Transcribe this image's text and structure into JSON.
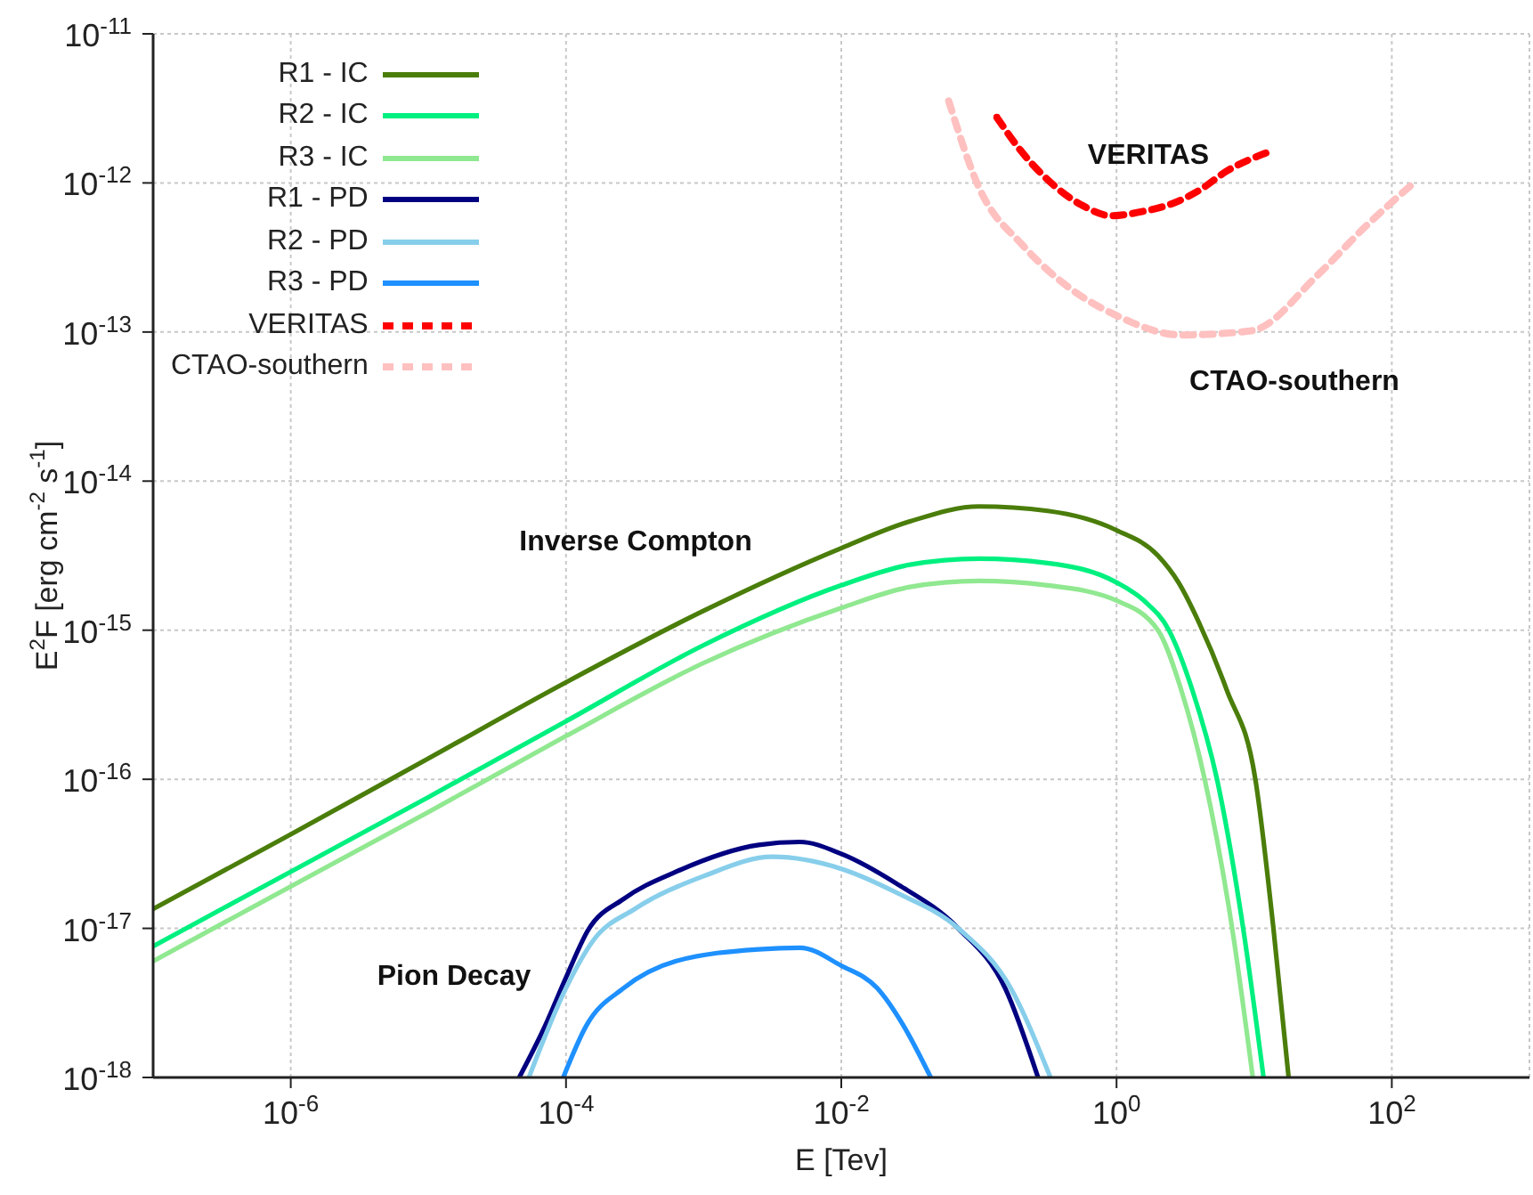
{
  "chart_data": {
    "type": "line",
    "xlabel": "E [Tev]",
    "ylabel": "E$^{2}$F [erg cm$^{-2}$ s$^{-1}$]",
    "log": "xy",
    "grid": true,
    "legend": "top left",
    "marker": "none",
    "line_style": "solid",
    "xlim": [
      1e-07,
      1000
    ],
    "ylim": [
      1e-18,
      1e-11
    ],
    "xticks": [
      {
        "value": 1e-06,
        "label": "10$^{-6}$"
      },
      {
        "value": 0.0001,
        "label": "10$^{-4}$"
      },
      {
        "value": 0.01,
        "label": "10$^{-2}$"
      },
      {
        "value": 1,
        "label": "10$^{0}$"
      },
      {
        "value": 100,
        "label": "10$^{2}$"
      }
    ],
    "yticks": [
      {
        "value": 1e-18,
        "label": "10$^{-18}$"
      },
      {
        "value": 1e-17,
        "label": "10$^{-17}$"
      },
      {
        "value": 1e-16,
        "label": "10$^{-16}$"
      },
      {
        "value": 1e-15,
        "label": "10$^{-15}$"
      },
      {
        "value": 1e-14,
        "label": "10$^{-14}$"
      },
      {
        "value": 1e-13,
        "label": "10$^{-13}$"
      },
      {
        "value": 1e-12,
        "label": "10$^{-12}$"
      },
      {
        "value": 1e-11,
        "label": "10$^{-11}$"
      }
    ],
    "series": [
      {
        "name": "R1 - IC",
        "color": "#4a7d0a",
        "x": [
          1e-07,
          1e-06,
          1e-05,
          0.0001,
          0.001,
          0.01,
          0.0316,
          0.1,
          0.316,
          1,
          2.0,
          2.82,
          3.98,
          6.31,
          10.2,
          13.8,
          17.8
        ],
        "values": [
          1.35e-17,
          4.27e-17,
          1.38e-16,
          4.47e-16,
          1.35e-15,
          3.55e-15,
          5.37e-15,
          6.76e-15,
          6.31e-15,
          4.68e-15,
          3.16e-15,
          2.09e-15,
          1.12e-15,
          3.98e-16,
          1e-16,
          1e-17,
          1e-18
        ]
      },
      {
        "name": "R2 - IC",
        "color": "#00f080",
        "x": [
          1e-07,
          1e-06,
          1e-05,
          0.0001,
          0.001,
          0.01,
          0.0316,
          0.1,
          0.316,
          1,
          1.58,
          2.4,
          3.55,
          5.37,
          8.32,
          11.7
        ],
        "values": [
          7.59e-18,
          2.4e-17,
          7.59e-17,
          2.45e-16,
          7.94e-16,
          2e-15,
          2.75e-15,
          3.02e-15,
          2.82e-15,
          2.09e-15,
          1.58e-15,
          1e-15,
          3.98e-16,
          1e-16,
          1e-17,
          1e-18
        ]
      },
      {
        "name": "R3 - IC",
        "color": "#90e890",
        "x": [
          1e-07,
          1e-06,
          1e-05,
          0.0001,
          0.001,
          0.01,
          0.0316,
          0.1,
          0.316,
          1,
          2.0,
          2.95,
          4.37,
          6.92,
          9.77
        ],
        "values": [
          6.03e-18,
          1.91e-17,
          6.03e-17,
          1.95e-16,
          6.03e-16,
          1.41e-15,
          1.95e-15,
          2.14e-15,
          2e-15,
          1.58e-15,
          1e-15,
          3.98e-16,
          1e-16,
          1e-17,
          1e-18
        ]
      },
      {
        "name": "R1 - PD",
        "color": "#000080",
        "x": [
          4.57e-05,
          7.08e-05,
          0.0001,
          0.000145,
          0.000263,
          0.000631,
          0.00251,
          0.00501,
          0.01,
          0.0251,
          0.0708,
          0.155,
          0.269
        ],
        "values": [
          1e-18,
          2.24e-18,
          4.68e-18,
          9.77e-18,
          1.58e-17,
          2.4e-17,
          3.63e-17,
          3.8e-17,
          3.16e-17,
          2e-17,
          1e-17,
          3.98e-18,
          1e-18
        ]
      },
      {
        "name": "R2 - PD",
        "color": "#87ceeb",
        "x": [
          5.37e-05,
          0.0001,
          0.000158,
          0.000316,
          0.001,
          0.00316,
          0.01,
          0.0251,
          0.0708,
          0.17,
          0.331
        ],
        "values": [
          1e-18,
          3.98e-18,
          8.32e-18,
          1.35e-17,
          2.24e-17,
          3.02e-17,
          2.51e-17,
          1.74e-17,
          1e-17,
          3.98e-18,
          1e-18
        ]
      },
      {
        "name": "R3 - PD",
        "color": "#1e90ff",
        "x": [
          9.55e-05,
          0.000141,
          0.000263,
          0.000631,
          0.00251,
          0.00501,
          0.01,
          0.0182,
          0.0282,
          0.0447
        ],
        "values": [
          1e-18,
          2.24e-18,
          3.98e-18,
          6.03e-18,
          7.24e-18,
          7.41e-18,
          5.62e-18,
          3.98e-18,
          2.24e-18,
          1e-18
        ]
      },
      {
        "name": "VERITAS",
        "color": "#ff0000",
        "line_style": "dashed",
        "x": [
          0.135,
          0.2,
          0.316,
          0.562,
          0.912,
          1.58,
          2.51,
          3.98,
          6.31,
          12.9
        ],
        "values": [
          2.75e-12,
          1.66e-12,
          1.05e-12,
          7.08e-13,
          6.03e-13,
          6.46e-13,
          7.24e-13,
          8.91e-13,
          1.2e-12,
          1.62e-12
        ]
      },
      {
        "name": "CTAO-southern",
        "color": "#ffc0c0",
        "line_style": "dashed",
        "x": [
          0.0603,
          0.1,
          0.209,
          0.447,
          1,
          2.95,
          9.55,
          28.8,
          63.1,
          148
        ],
        "values": [
          3.55e-12,
          9.33e-13,
          3.8e-13,
          2e-13,
          1.29e-13,
          9.55e-14,
          1.02e-13,
          2.4e-13,
          5.01e-13,
          1.02e-12
        ]
      }
    ],
    "annotations": [
      "VERITAS",
      "CTAO-southern",
      "Inverse Compton",
      "Pion Decay"
    ]
  }
}
